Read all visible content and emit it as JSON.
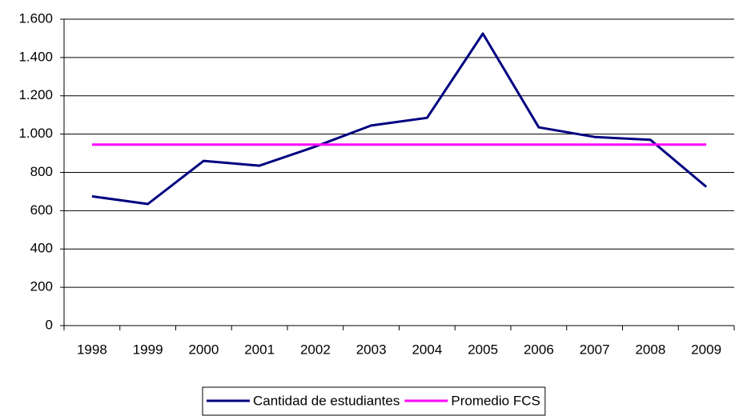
{
  "chart_data": {
    "type": "line",
    "categories": [
      "1998",
      "1999",
      "2000",
      "2001",
      "2002",
      "2003",
      "2004",
      "2005",
      "2006",
      "2007",
      "2008",
      "2009"
    ],
    "series": [
      {
        "name": "Cantidad de estudiantes",
        "color": "#000080",
        "values": [
          675,
          635,
          860,
          835,
          935,
          1045,
          1085,
          1525,
          1035,
          985,
          970,
          725
        ]
      },
      {
        "name": "Promedio FCS",
        "color": "#ff00ff",
        "values": [
          945,
          945,
          945,
          945,
          945,
          945,
          945,
          945,
          945,
          945,
          945,
          945
        ]
      }
    ],
    "ylim": [
      0,
      1600
    ],
    "yticks": [
      0,
      200,
      400,
      600,
      800,
      {
        "value": 1000,
        "label": "1.000"
      },
      {
        "value": 1200,
        "label": "1.200"
      },
      {
        "value": 1400,
        "label": "1.400"
      },
      {
        "value": 1600,
        "label": "1.600"
      }
    ],
    "grid": true,
    "legend": "bottom"
  }
}
